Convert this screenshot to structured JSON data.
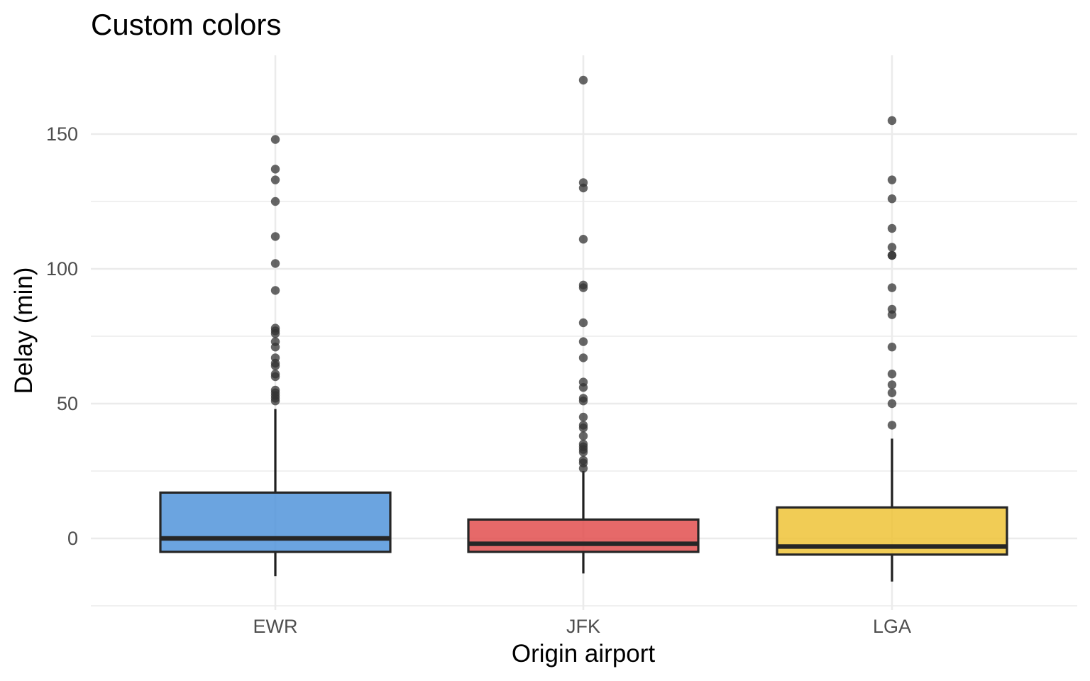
{
  "chart_data": {
    "type": "boxplot",
    "title": "Custom colors",
    "xlabel": "Origin airport",
    "ylabel": "Delay (min)",
    "ylim": [
      -25,
      178
    ],
    "y_major_ticks": [
      0,
      50,
      100,
      150
    ],
    "y_minor_ticks": [
      -25,
      25,
      75,
      125
    ],
    "grid": true,
    "categories": [
      "EWR",
      "JFK",
      "LGA"
    ],
    "boxes": [
      {
        "name": "EWR",
        "color": "#4A90D9",
        "q1": -5,
        "median": 0,
        "q3": 17,
        "whisker_low": -14,
        "whisker_high": 48,
        "outliers": [
          148,
          137,
          133,
          125,
          112,
          102,
          92,
          78,
          77,
          76,
          73,
          71,
          67,
          65,
          64,
          61,
          60,
          55,
          54,
          53,
          52,
          51
        ]
      },
      {
        "name": "JFK",
        "color": "#E04848",
        "q1": -5,
        "median": -2,
        "q3": 7,
        "whisker_low": -13,
        "whisker_high": 25,
        "outliers": [
          170,
          132,
          130,
          111,
          94,
          93,
          80,
          73,
          67,
          58,
          56,
          52,
          51,
          45,
          42,
          41,
          38,
          35,
          34,
          33,
          32,
          29,
          28,
          26
        ]
      },
      {
        "name": "LGA",
        "color": "#EEC130",
        "q1": -6,
        "median": -3,
        "q3": 11.5,
        "whisker_low": -16,
        "whisker_high": 37,
        "outliers": [
          155,
          133,
          126,
          115,
          108,
          105,
          105,
          93,
          85,
          83,
          71,
          61,
          57,
          54,
          50,
          42
        ]
      }
    ]
  }
}
